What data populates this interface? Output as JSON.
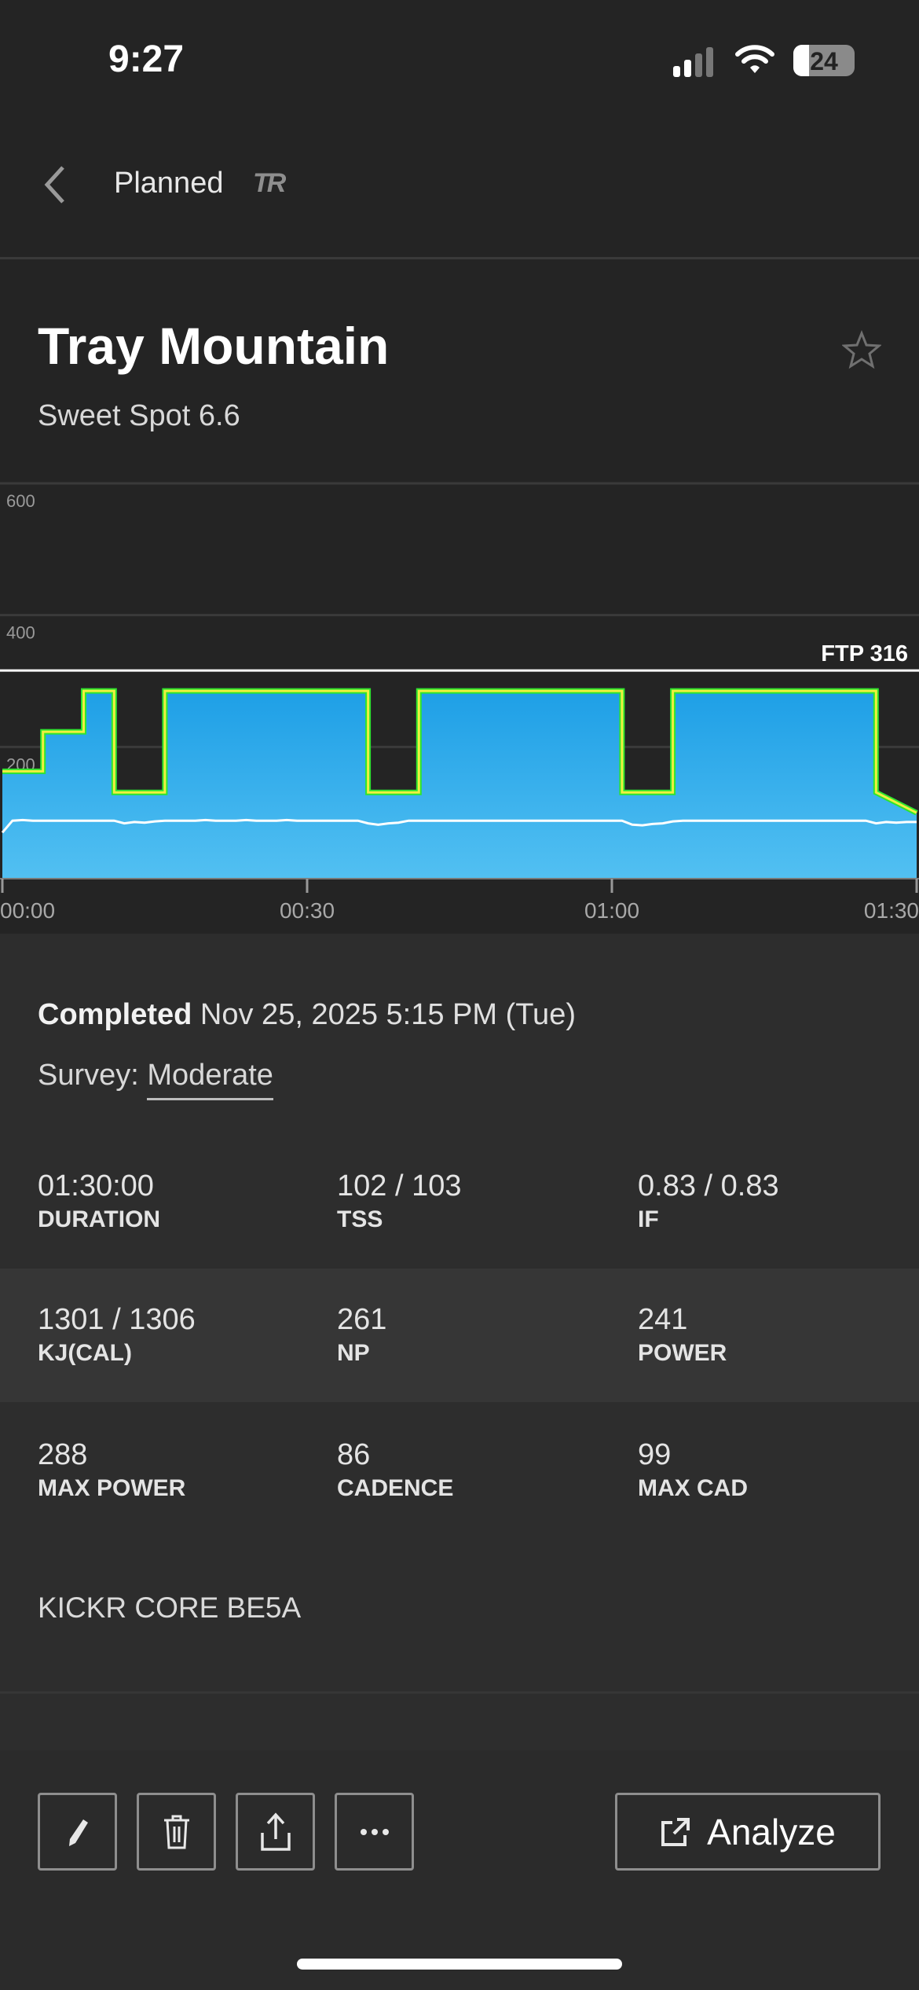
{
  "status_bar": {
    "time": "9:27",
    "battery": "24"
  },
  "nav": {
    "back_label": "Planned",
    "logo": "TR"
  },
  "workout": {
    "title": "Tray Mountain",
    "subtitle": "Sweet Spot 6.6"
  },
  "chart_data": {
    "type": "area",
    "y_ticks": [
      "600",
      "400",
      "200"
    ],
    "ylim": [
      0,
      600
    ],
    "x_ticks": [
      "00:00",
      "00:30",
      "01:00",
      "01:30"
    ],
    "xlim_minutes": [
      0,
      90
    ],
    "ftp_label": "FTP 316",
    "ftp": 316,
    "planned_steps": [
      [
        0,
        4,
        163
      ],
      [
        4,
        8,
        223
      ],
      [
        8,
        11,
        285
      ],
      [
        11,
        16,
        131
      ],
      [
        16,
        36,
        285
      ],
      [
        36,
        41,
        131
      ],
      [
        41,
        61,
        285
      ],
      [
        61,
        66,
        131
      ],
      [
        66,
        86,
        285
      ],
      [
        86,
        90,
        131,
        100
      ]
    ],
    "cadence": [
      70,
      88,
      89,
      88,
      88,
      88,
      88,
      88,
      88,
      88,
      88,
      88,
      84,
      86,
      85,
      87,
      88,
      88,
      88,
      88,
      89,
      88,
      88,
      88,
      89,
      88,
      88,
      88,
      89,
      88,
      88,
      88,
      88,
      88,
      88,
      88,
      84,
      82,
      84,
      85,
      88,
      88,
      88,
      88,
      88,
      88,
      88,
      88,
      88,
      88,
      88,
      88,
      88,
      88,
      88,
      88,
      88,
      88,
      88,
      88,
      88,
      88,
      82,
      81,
      83,
      84,
      87,
      88,
      88,
      88,
      88,
      88,
      88,
      88,
      88,
      88,
      88,
      88,
      88,
      88,
      88,
      88,
      88,
      88,
      88,
      88,
      84,
      86,
      85,
      86,
      86
    ],
    "colors": {
      "fill_top": "#1e9fe6",
      "fill_bottom": "#52c0f2",
      "target": "#2ee52e",
      "actual": "#f0f040",
      "cadence": "#ffffff"
    }
  },
  "summary": {
    "completed_label": "Completed",
    "completed_date": "Nov 25, 2025 5:15 PM (Tue)",
    "survey_label": "Survey:",
    "survey_value": "Moderate"
  },
  "stats": [
    {
      "value": "01:30:00",
      "label": "DURATION"
    },
    {
      "value": "102 / 103",
      "label": "TSS"
    },
    {
      "value": "0.83 / 0.83",
      "label": "IF"
    },
    {
      "value": "1301 / 1306",
      "label": "KJ(CAL)"
    },
    {
      "value": "261",
      "label": "NP"
    },
    {
      "value": "241",
      "label": "POWER"
    },
    {
      "value": "288",
      "label": "MAX POWER"
    },
    {
      "value": "86",
      "label": "CADENCE"
    },
    {
      "value": "99",
      "label": "MAX CAD"
    }
  ],
  "device": "KICKR CORE BE5A",
  "actions": {
    "analyze_label": "Analyze"
  }
}
